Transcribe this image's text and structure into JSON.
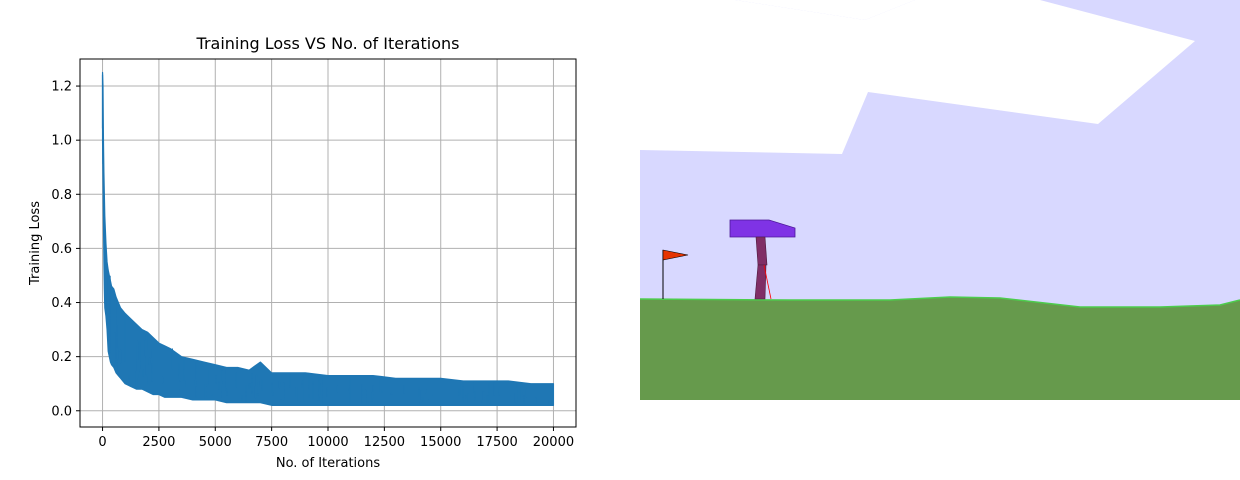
{
  "chart_data": {
    "type": "line",
    "title": "Training Loss VS No. of Iterations",
    "xlabel": "No. of Iterations",
    "ylabel": "Training Loss",
    "xlim": [
      -1000,
      21000
    ],
    "ylim": [
      -0.06,
      1.3
    ],
    "x_ticks": [
      0,
      2500,
      5000,
      7500,
      10000,
      12500,
      15000,
      17500,
      20000
    ],
    "x_tick_labels": [
      "0",
      "2500",
      "5000",
      "7500",
      "10000",
      "12500",
      "15000",
      "17500",
      "20000"
    ],
    "y_ticks": [
      0.0,
      0.2,
      0.4,
      0.6,
      0.8,
      1.0,
      1.2
    ],
    "y_tick_labels": [
      "0.0",
      "0.2",
      "0.4",
      "0.6",
      "0.8",
      "1.0",
      "1.2"
    ],
    "grid": true,
    "series": [
      {
        "color": "#1f77b4",
        "x": [
          0,
          20,
          40,
          60,
          80,
          100,
          150,
          200,
          250,
          300,
          350,
          400,
          500,
          600,
          700,
          800,
          900,
          1000,
          1250,
          1500,
          1750,
          2000,
          2250,
          2500,
          2750,
          3000,
          3500,
          4000,
          4500,
          5000,
          5500,
          6000,
          6500,
          7000,
          7500,
          8000,
          9000,
          10000,
          11000,
          12000,
          13000,
          14000,
          15000,
          16000,
          17000,
          18000,
          19000,
          20000
        ],
        "upper": [
          1.25,
          1.2,
          1.0,
          0.88,
          0.8,
          0.72,
          0.62,
          0.55,
          0.52,
          0.5,
          0.48,
          0.46,
          0.45,
          0.42,
          0.4,
          0.38,
          0.37,
          0.36,
          0.34,
          0.32,
          0.3,
          0.29,
          0.27,
          0.25,
          0.24,
          0.23,
          0.2,
          0.19,
          0.18,
          0.17,
          0.16,
          0.16,
          0.15,
          0.18,
          0.14,
          0.14,
          0.14,
          0.13,
          0.13,
          0.13,
          0.12,
          0.12,
          0.12,
          0.11,
          0.11,
          0.11,
          0.1,
          0.1
        ],
        "lower": [
          1.0,
          0.85,
          0.7,
          0.55,
          0.45,
          0.38,
          0.35,
          0.3,
          0.22,
          0.2,
          0.18,
          0.17,
          0.16,
          0.14,
          0.13,
          0.12,
          0.11,
          0.1,
          0.09,
          0.08,
          0.08,
          0.07,
          0.06,
          0.06,
          0.05,
          0.05,
          0.05,
          0.04,
          0.04,
          0.04,
          0.03,
          0.03,
          0.03,
          0.03,
          0.02,
          0.02,
          0.02,
          0.02,
          0.02,
          0.02,
          0.02,
          0.02,
          0.02,
          0.02,
          0.02,
          0.02,
          0.02,
          0.02
        ]
      }
    ]
  },
  "environment": {
    "sky_color": "#d8d8ff",
    "cloud_color": "#ffffff",
    "ground_color": "#669a4c",
    "ground_edge_color": "#4dcc4d",
    "hull_color": "#7f33e5",
    "leg_color": "#802e66",
    "flag_color": "#e53300",
    "lidar_color": "#ff0000"
  }
}
